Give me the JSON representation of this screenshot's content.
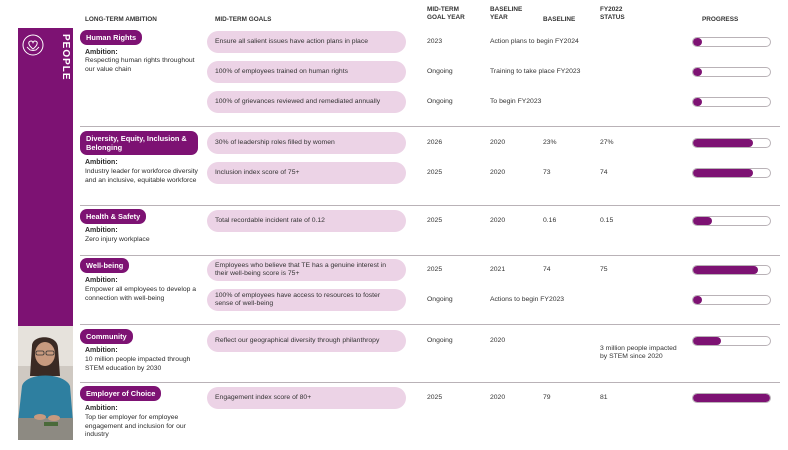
{
  "brand_color": "#7d1273",
  "pill_color": "#ecd3e6",
  "sidebar": {
    "label": "PEOPLE",
    "icon": "heart-hands-icon"
  },
  "headers": {
    "ambition": "LONG-TERM AMBITION",
    "goals": "MID-TERM GOALS",
    "goal_year": "MID-TERM GOAL YEAR",
    "baseline_year": "BASELINE YEAR",
    "baseline": "BASELINE",
    "status": "FY2022 STATUS",
    "progress": "PROGRESS"
  },
  "sections": [
    {
      "tag": "Human Rights",
      "ambition_label": "Ambition:",
      "ambition": "Respecting human rights throughout our value chain",
      "goals": [
        {
          "goal": "Ensure all salient issues have action plans in place",
          "year": "2023",
          "baseline_year": "Action plans to begin FY2024",
          "baseline": "",
          "status": "",
          "progress": 0.12
        },
        {
          "goal": "100% of employees trained on human rights",
          "year": "Ongoing",
          "baseline_year": "Training to take place FY2023",
          "baseline": "",
          "status": "",
          "progress": 0.12
        },
        {
          "goal": "100% of grievances reviewed and remediated annually",
          "year": "Ongoing",
          "baseline_year": "To begin FY2023",
          "baseline": "",
          "status": "",
          "progress": 0.12
        }
      ]
    },
    {
      "tag": "Diversity, Equity, Inclusion & Belonging",
      "ambition_label": "Ambition:",
      "ambition": "Industry leader for workforce diversity and an inclusive, equitable workforce",
      "goals": [
        {
          "goal": "30% of leadership roles filled by women",
          "year": "2026",
          "baseline_year": "2020",
          "baseline": "23%",
          "status": "27%",
          "progress": 0.78
        },
        {
          "goal": "Inclusion index score of 75+",
          "year": "2025",
          "baseline_year": "2020",
          "baseline": "73",
          "status": "74",
          "progress": 0.78
        }
      ]
    },
    {
      "tag": "Health & Safety",
      "ambition_label": "Ambition:",
      "ambition": "Zero injury workplace",
      "goals": [
        {
          "goal": "Total recordable incident rate of 0.12",
          "year": "2025",
          "baseline_year": "2020",
          "baseline": "0.16",
          "status": "0.15",
          "progress": 0.25
        }
      ]
    },
    {
      "tag": "Well-being",
      "ambition_label": "Ambition:",
      "ambition": "Empower all employees to develop a connection with well-being",
      "goals": [
        {
          "goal": "Employees who believe that TE has a genuine interest in their well-being score is 75+",
          "year": "2025",
          "baseline_year": "2021",
          "baseline": "74",
          "status": "75",
          "progress": 0.85
        },
        {
          "goal": "100% of employees have access to resources to foster sense of well-being",
          "year": "Ongoing",
          "baseline_year": "Actions to begin FY2023",
          "baseline": "",
          "status": "",
          "progress": 0.12
        }
      ]
    },
    {
      "tag": "Community",
      "ambition_label": "Ambition:",
      "ambition": "10 million people impacted through STEM education by 2030",
      "goals": [
        {
          "goal": "Reflect our geographical diversity through philanthropy",
          "year": "Ongoing",
          "baseline_year": "2020",
          "baseline": "",
          "status": "3 million people impacted by STEM since 2020",
          "progress": 0.36
        }
      ]
    },
    {
      "tag": "Employer of Choice",
      "ambition_label": "Ambition:",
      "ambition": "Top tier employer for employee engagement and inclusion for our industry",
      "goals": [
        {
          "goal": "Engagement index score of 80+",
          "year": "2025",
          "baseline_year": "2020",
          "baseline": "79",
          "status": "81",
          "progress": 1.0
        }
      ]
    }
  ]
}
